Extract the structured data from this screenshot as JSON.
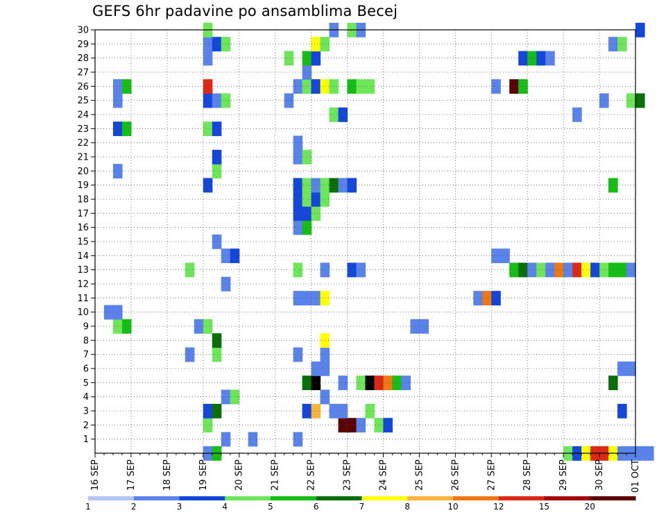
{
  "chart_data": {
    "type": "heatmap",
    "title": "GEFS 6hr padavine po ansamblima Becej",
    "xlabel": "",
    "ylabel": "",
    "x_unit": "6-hour steps starting 16 SEP 00Z",
    "x_ticks": [
      "16 SEP",
      "17 SEP",
      "18 SEP",
      "19 SEP",
      "20 SEP",
      "21 SEP",
      "22 SEP",
      "23 SEP",
      "24 SEP",
      "25 SEP",
      "26 SEP",
      "27 SEP",
      "28 SEP",
      "29 SEP",
      "30 SEP",
      "01 OCT"
    ],
    "y_ticks": [
      1,
      2,
      3,
      4,
      5,
      6,
      7,
      8,
      9,
      10,
      11,
      12,
      13,
      14,
      15,
      16,
      17,
      18,
      19,
      20,
      21,
      22,
      23,
      24,
      25,
      26,
      27,
      28,
      29,
      30
    ],
    "xlim": [
      0,
      60
    ],
    "ylim": [
      0,
      30
    ],
    "grid": true,
    "color_scale": {
      "labels": [
        "1",
        "2",
        "3",
        "4",
        "5",
        "6",
        "7",
        "8",
        "10",
        "12",
        "15",
        "20"
      ],
      "colors": [
        "#b4c8f5",
        "#5a82eb",
        "#1446dc",
        "#6ee65a",
        "#14be14",
        "#0a6e0a",
        "#ffff00",
        "#fab43c",
        "#f07814",
        "#dc2814",
        "#a00a0a",
        "#5a0000"
      ]
    },
    "cells": [
      [
        12,
        0,
        1
      ],
      [
        13,
        0,
        4
      ],
      [
        52,
        0,
        3
      ],
      [
        53,
        0,
        2
      ],
      [
        54,
        0,
        6
      ],
      [
        55,
        0,
        9
      ],
      [
        56,
        0,
        9
      ],
      [
        57,
        0,
        6
      ],
      [
        58,
        0,
        1
      ],
      [
        59,
        0,
        1
      ],
      [
        60,
        0,
        1
      ],
      [
        61,
        0,
        1
      ],
      [
        14,
        1,
        1
      ],
      [
        17,
        1,
        1
      ],
      [
        22,
        1,
        1
      ],
      [
        12,
        2,
        3
      ],
      [
        27,
        2,
        11
      ],
      [
        28,
        2,
        11
      ],
      [
        29,
        2,
        1
      ],
      [
        31,
        2,
        3
      ],
      [
        32,
        2,
        2
      ],
      [
        12,
        3,
        2
      ],
      [
        13,
        3,
        5
      ],
      [
        23,
        3,
        2
      ],
      [
        24,
        3,
        7
      ],
      [
        26,
        3,
        1
      ],
      [
        27,
        3,
        1
      ],
      [
        30,
        3,
        3
      ],
      [
        58,
        3,
        2
      ],
      [
        14,
        4,
        1
      ],
      [
        15,
        4,
        3
      ],
      [
        25,
        4,
        1
      ],
      [
        23,
        5,
        5
      ],
      [
        24,
        5,
        12
      ],
      [
        27,
        5,
        1
      ],
      [
        29,
        5,
        3
      ],
      [
        30,
        5,
        12
      ],
      [
        31,
        5,
        9
      ],
      [
        32,
        5,
        8
      ],
      [
        33,
        5,
        4
      ],
      [
        34,
        5,
        1
      ],
      [
        57,
        5,
        5
      ],
      [
        24,
        6,
        1
      ],
      [
        25,
        6,
        1
      ],
      [
        58,
        6,
        1
      ],
      [
        59,
        6,
        1
      ],
      [
        10,
        7,
        1
      ],
      [
        13,
        7,
        3
      ],
      [
        22,
        7,
        1
      ],
      [
        25,
        7,
        1
      ],
      [
        13,
        8,
        5
      ],
      [
        25,
        8,
        6
      ],
      [
        11,
        9,
        1
      ],
      [
        12,
        9,
        3
      ],
      [
        2,
        9,
        3
      ],
      [
        3,
        9,
        4
      ],
      [
        35,
        9,
        1
      ],
      [
        36,
        9,
        1
      ],
      [
        1,
        10,
        1
      ],
      [
        2,
        10,
        1
      ],
      [
        22,
        11,
        1
      ],
      [
        23,
        11,
        1
      ],
      [
        24,
        11,
        1
      ],
      [
        25,
        11,
        6
      ],
      [
        42,
        11,
        1
      ],
      [
        43,
        11,
        8
      ],
      [
        44,
        11,
        2
      ],
      [
        14,
        12,
        1
      ],
      [
        10,
        13,
        3
      ],
      [
        22,
        13,
        3
      ],
      [
        25,
        13,
        1
      ],
      [
        28,
        13,
        2
      ],
      [
        29,
        13,
        1
      ],
      [
        46,
        13,
        4
      ],
      [
        47,
        13,
        5
      ],
      [
        48,
        13,
        1
      ],
      [
        49,
        13,
        3
      ],
      [
        50,
        13,
        1
      ],
      [
        51,
        13,
        8
      ],
      [
        52,
        13,
        1
      ],
      [
        53,
        13,
        9
      ],
      [
        54,
        13,
        6
      ],
      [
        55,
        13,
        2
      ],
      [
        56,
        13,
        3
      ],
      [
        57,
        13,
        4
      ],
      [
        58,
        13,
        4
      ],
      [
        59,
        13,
        1
      ],
      [
        14,
        14,
        1
      ],
      [
        15,
        14,
        2
      ],
      [
        44,
        14,
        1
      ],
      [
        45,
        14,
        1
      ],
      [
        13,
        15,
        1
      ],
      [
        22,
        16,
        1
      ],
      [
        23,
        16,
        4
      ],
      [
        22,
        17,
        2
      ],
      [
        23,
        17,
        2
      ],
      [
        24,
        17,
        3
      ],
      [
        22,
        18,
        2
      ],
      [
        23,
        18,
        3
      ],
      [
        24,
        18,
        2
      ],
      [
        25,
        18,
        3
      ],
      [
        12,
        19,
        2
      ],
      [
        22,
        19,
        2
      ],
      [
        23,
        19,
        3
      ],
      [
        24,
        19,
        1
      ],
      [
        25,
        19,
        3
      ],
      [
        26,
        19,
        5
      ],
      [
        27,
        19,
        1
      ],
      [
        28,
        19,
        2
      ],
      [
        57,
        19,
        4
      ],
      [
        2,
        20,
        1
      ],
      [
        13,
        20,
        3
      ],
      [
        13,
        21,
        2
      ],
      [
        22,
        21,
        1
      ],
      [
        23,
        21,
        3
      ],
      [
        22,
        22,
        1
      ],
      [
        2,
        23,
        2
      ],
      [
        3,
        23,
        4
      ],
      [
        12,
        23,
        3
      ],
      [
        13,
        23,
        2
      ],
      [
        26,
        24,
        3
      ],
      [
        27,
        24,
        2
      ],
      [
        53,
        24,
        1
      ],
      [
        2,
        25,
        1
      ],
      [
        12,
        25,
        2
      ],
      [
        13,
        25,
        1
      ],
      [
        14,
        25,
        3
      ],
      [
        21,
        25,
        1
      ],
      [
        56,
        25,
        1
      ],
      [
        59,
        25,
        3
      ],
      [
        60,
        25,
        5
      ],
      [
        2,
        26,
        1
      ],
      [
        3,
        26,
        4
      ],
      [
        12,
        26,
        9
      ],
      [
        22,
        26,
        1
      ],
      [
        23,
        26,
        3
      ],
      [
        24,
        26,
        2
      ],
      [
        25,
        26,
        6
      ],
      [
        26,
        26,
        3
      ],
      [
        28,
        26,
        4
      ],
      [
        29,
        26,
        3
      ],
      [
        30,
        26,
        3
      ],
      [
        44,
        26,
        1
      ],
      [
        46,
        26,
        11
      ],
      [
        47,
        26,
        4
      ],
      [
        23,
        27,
        1
      ],
      [
        12,
        28,
        1
      ],
      [
        21,
        28,
        3
      ],
      [
        23,
        28,
        4
      ],
      [
        24,
        28,
        2
      ],
      [
        47,
        28,
        2
      ],
      [
        48,
        28,
        4
      ],
      [
        49,
        28,
        2
      ],
      [
        50,
        28,
        1
      ],
      [
        12,
        29,
        1
      ],
      [
        13,
        29,
        2
      ],
      [
        14,
        29,
        3
      ],
      [
        24,
        29,
        6
      ],
      [
        25,
        29,
        3
      ],
      [
        57,
        29,
        1
      ],
      [
        58,
        29,
        3
      ],
      [
        12,
        30,
        3
      ],
      [
        26,
        30,
        1
      ],
      [
        28,
        30,
        3
      ],
      [
        29,
        30,
        1
      ],
      [
        60,
        30,
        2
      ]
    ]
  }
}
